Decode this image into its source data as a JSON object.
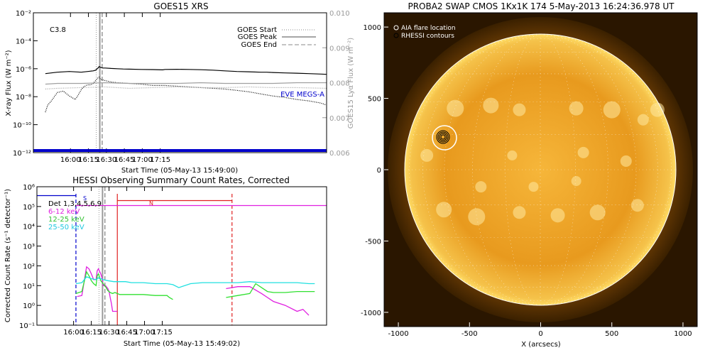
{
  "chart_data": [
    {
      "type": "line",
      "title": "GOES15 XRS",
      "xlabel": "Start Time (05-May-13 15:49:00)",
      "ylabel": "X-ray Flux (W m⁻²)",
      "ylabel_right": "GOES15 Lyα Flux (W m⁻²)",
      "xlim": [
        -20,
        225
      ],
      "xticks": [
        [
          11,
          "16:00"
        ],
        [
          26,
          "16:15"
        ],
        [
          41,
          "16:30"
        ],
        [
          56,
          "16:45"
        ],
        [
          71,
          "17:00"
        ],
        [
          86,
          "17:15"
        ]
      ],
      "ylim_log": [
        -12,
        -2
      ],
      "yticks": [
        [
          -2,
          "10⁻²"
        ],
        [
          -4,
          "10⁻⁴"
        ],
        [
          -6,
          "10⁻⁶"
        ],
        [
          -8,
          "10⁻⁸"
        ],
        [
          -10,
          "10⁻¹⁰"
        ],
        [
          -12,
          "10⁻¹²"
        ]
      ],
      "ylim_right": [
        0.006,
        0.01
      ],
      "yticks_right": [
        "0.010",
        "0.009",
        "0.008",
        "0.007",
        "0.006"
      ],
      "class_label": "C3.8",
      "legend": [
        {
          "name": "GOES Start",
          "style": "dotted"
        },
        {
          "name": "GOES Peak",
          "style": "solid"
        },
        {
          "name": "GOES End",
          "style": "dashed"
        }
      ],
      "annotation": "EVE MEGS-A",
      "event_lines_min": {
        "start": 32.5,
        "peak": 35.5,
        "end": 37.5
      },
      "series": [
        {
          "color": "#000000",
          "style": "solid",
          "x_min": [
            -10,
            0,
            10,
            20,
            30,
            32,
            34,
            35,
            36,
            38,
            40,
            45,
            50,
            55,
            60,
            70,
            80,
            88,
            90,
            100,
            110,
            120,
            130,
            140,
            150,
            160,
            170,
            175,
            180,
            190,
            200,
            210,
            220,
            225
          ],
          "log_y": [
            -6.35,
            -6.25,
            -6.2,
            -6.25,
            -6.15,
            -6.1,
            -5.95,
            -5.85,
            -5.9,
            -5.95,
            -5.95,
            -5.98,
            -6.0,
            -6.02,
            -6.03,
            -6.05,
            -6.06,
            -6.08,
            -6.05,
            -6.04,
            -6.05,
            -6.07,
            -6.1,
            -6.15,
            -6.2,
            -6.22,
            -6.25,
            -6.25,
            -6.27,
            -6.3,
            -6.32,
            -6.35,
            -6.38,
            -6.4
          ]
        },
        {
          "color": "#000000",
          "style": "dotted",
          "x_min": [
            -10,
            -8,
            -5,
            0,
            5,
            10,
            15,
            18,
            20,
            22,
            25,
            28,
            30,
            32,
            34,
            35,
            36,
            40,
            45,
            50,
            55,
            60,
            70,
            80,
            90,
            100,
            110,
            120,
            130,
            140,
            150,
            160,
            170,
            180,
            190,
            200,
            210,
            220,
            225
          ],
          "log_y": [
            -9.1,
            -8.6,
            -8.3,
            -7.7,
            -7.6,
            -7.95,
            -8.2,
            -7.8,
            -7.5,
            -7.3,
            -7.15,
            -7.15,
            -7.05,
            -6.85,
            -6.65,
            -6.6,
            -6.75,
            -6.85,
            -6.95,
            -7.0,
            -7.02,
            -7.05,
            -7.1,
            -7.2,
            -7.2,
            -7.25,
            -7.3,
            -7.35,
            -7.4,
            -7.45,
            -7.55,
            -7.65,
            -7.8,
            -7.95,
            -8.05,
            -8.2,
            -8.3,
            -8.45,
            -8.6
          ]
        },
        {
          "color": "#a0a0a0",
          "style": "solid",
          "x_min": [
            -10,
            0,
            20,
            40,
            60,
            80,
            100,
            120,
            140,
            160,
            180,
            200,
            225
          ],
          "log_y": [
            -7.1,
            -7.05,
            -7.05,
            -7.0,
            -7.05,
            -7.05,
            -7.05,
            -7.0,
            -7.05,
            -7.05,
            -7.05,
            -7.0,
            -7.0
          ]
        },
        {
          "color": "#a0a0a0",
          "style": "dotted",
          "x_min": [
            -10,
            0,
            20,
            40,
            60,
            80,
            100,
            120,
            140,
            160,
            180,
            200,
            225
          ],
          "log_y": [
            -7.45,
            -7.4,
            -7.35,
            -7.3,
            -7.4,
            -7.35,
            -7.3,
            -7.35,
            -7.35,
            -7.3,
            -7.35,
            -7.35,
            -7.4
          ]
        },
        {
          "color": "#0000cc",
          "style": "thick",
          "x_min": [
            -20,
            225
          ],
          "log_y": [
            -11.85,
            -11.85
          ]
        }
      ]
    },
    {
      "type": "line",
      "title": "HESSI Observing Summary Count Rates, Corrected",
      "xlabel": "Start Time (05-May-13 15:49:02)",
      "ylabel": "Corrected Count Rate (s⁻¹ detector⁻¹)",
      "xlim": [
        -20,
        225
      ],
      "xticks": [
        [
          11,
          "16:00"
        ],
        [
          26,
          "16:15"
        ],
        [
          41,
          "16:30"
        ],
        [
          56,
          "16:45"
        ],
        [
          71,
          "17:00"
        ],
        [
          86,
          "17:15"
        ]
      ],
      "ylim_log": [
        -1,
        6
      ],
      "yticks": [
        [
          6,
          "10⁶"
        ],
        [
          5,
          "10⁵"
        ],
        [
          4,
          "10⁴"
        ],
        [
          3,
          "10³"
        ],
        [
          2,
          "10²"
        ],
        [
          1,
          "10¹"
        ],
        [
          0,
          "10⁰"
        ],
        [
          -1,
          "10⁻¹"
        ]
      ],
      "legend": [
        {
          "name": "Det 1,3,4,5,6,9",
          "color": "#000000"
        },
        {
          "name": "6-12 keV",
          "color": "#e020e0"
        },
        {
          "name": "12-25 keV",
          "color": "#30e030"
        },
        {
          "name": "25-50 keV",
          "color": "#20e0e0"
        }
      ],
      "flag_labels": [
        "S",
        "N"
      ],
      "event_lines_min": {
        "start": 32.5,
        "peak": 35.5,
        "end": 37.5
      },
      "series": [
        {
          "name": "6-12 keV",
          "color": "#e020e0",
          "x_min": [
            14,
            18,
            22,
            24,
            26,
            28,
            30,
            31,
            32,
            34,
            35,
            36,
            38,
            40,
            41,
            42,
            43,
            44,
            45,
            46,
            47,
            48
          ],
          "log_y": [
            0.45,
            0.5,
            1.95,
            1.85,
            1.6,
            1.3,
            1.3,
            1.75,
            1.85,
            1.6,
            1.4,
            1.0,
            1.0,
            0.85,
            0.7,
            0.4,
            0.1,
            -0.3,
            -0.3,
            -0.3,
            -0.3,
            -0.3
          ]
        },
        {
          "name": "6-12 keV",
          "color": "#e020e0",
          "x_min": [
            140,
            150,
            160,
            170,
            175,
            180,
            190,
            200,
            205,
            210
          ],
          "log_y": [
            0.85,
            0.95,
            0.95,
            0.6,
            0.4,
            0.2,
            0.0,
            -0.3,
            -0.2,
            -0.5
          ]
        },
        {
          "name": "12-25 keV",
          "color": "#30e030",
          "x_min": [
            13,
            18,
            22,
            24,
            26,
            28,
            30,
            31,
            32,
            34,
            36,
            38,
            40,
            42,
            44,
            46,
            48,
            50,
            60,
            70,
            80,
            90,
            92,
            95
          ],
          "log_y": [
            0.6,
            0.7,
            1.7,
            1.5,
            1.25,
            1.1,
            1.0,
            1.5,
            1.6,
            1.25,
            1.1,
            0.95,
            0.75,
            0.65,
            0.6,
            0.65,
            0.6,
            0.55,
            0.55,
            0.55,
            0.5,
            0.5,
            0.4,
            0.3
          ]
        },
        {
          "name": "12-25 keV",
          "color": "#30e030",
          "x_min": [
            140,
            150,
            160,
            165,
            170,
            175,
            180,
            190,
            200,
            210,
            215
          ],
          "log_y": [
            0.4,
            0.5,
            0.6,
            1.1,
            0.9,
            0.7,
            0.65,
            0.65,
            0.7,
            0.7,
            0.7
          ]
        },
        {
          "name": "25-50 keV",
          "color": "#20e0e0",
          "x_min": [
            13,
            18,
            22,
            26,
            30,
            32,
            36,
            40,
            45,
            50,
            55,
            60,
            70,
            80,
            90,
            95,
            100,
            110,
            120,
            130,
            140,
            150,
            160,
            170,
            180,
            190,
            200,
            210,
            215
          ],
          "log_y": [
            1.1,
            1.15,
            1.45,
            1.35,
            1.3,
            1.4,
            1.3,
            1.25,
            1.2,
            1.2,
            1.2,
            1.15,
            1.15,
            1.1,
            1.1,
            1.05,
            0.9,
            1.1,
            1.15,
            1.15,
            1.15,
            1.15,
            1.2,
            1.15,
            1.15,
            1.15,
            1.15,
            1.1,
            1.1
          ]
        },
        {
          "name": "Det 1,3,4,5,6,9",
          "color": "#0000cc",
          "x_min": [
            -20,
            13
          ],
          "log_y": [
            5.55,
            5.55
          ]
        },
        {
          "name": "Det 1,3,4,5,6,9",
          "color": "#e020e0",
          "x_min": [
            13,
            225
          ],
          "log_y": [
            5.05,
            5.05
          ]
        },
        {
          "name": "Det 1,3,4,5,6,9",
          "color": "#e02020",
          "x_min": [
            48,
            145
          ],
          "log_y": [
            5.3,
            5.3
          ]
        }
      ],
      "event_markers": [
        {
          "x_min": 13,
          "color": "#0000cc",
          "style": "dashed"
        },
        {
          "x_min": 48,
          "color": "#e02020",
          "style": "solid"
        },
        {
          "x_min": 145,
          "color": "#e02020",
          "style": "dashed"
        }
      ]
    }
  ],
  "image_panel": {
    "title": "PROBA2 SWAP CMOS 1Kx1K 174  5-May-2013 16:24:36.978 UT",
    "xlabel": "X (arcsecs)",
    "xlim": [
      -1100,
      1100
    ],
    "ylim": [
      -1100,
      1100
    ],
    "xticks": [
      "-1000",
      "-500",
      "0",
      "500",
      "1000"
    ],
    "yticks": [
      "1000",
      "500",
      "0",
      "-500",
      "-1000"
    ],
    "legend": [
      "AIA flare location",
      "RHESSI contours"
    ],
    "flare_location_arcsec": [
      -660,
      220
    ],
    "colors": {
      "sun_core": "#ffdc64",
      "sun_edge": "#c87810",
      "corona": "#5a3200",
      "background": "#201000"
    }
  }
}
